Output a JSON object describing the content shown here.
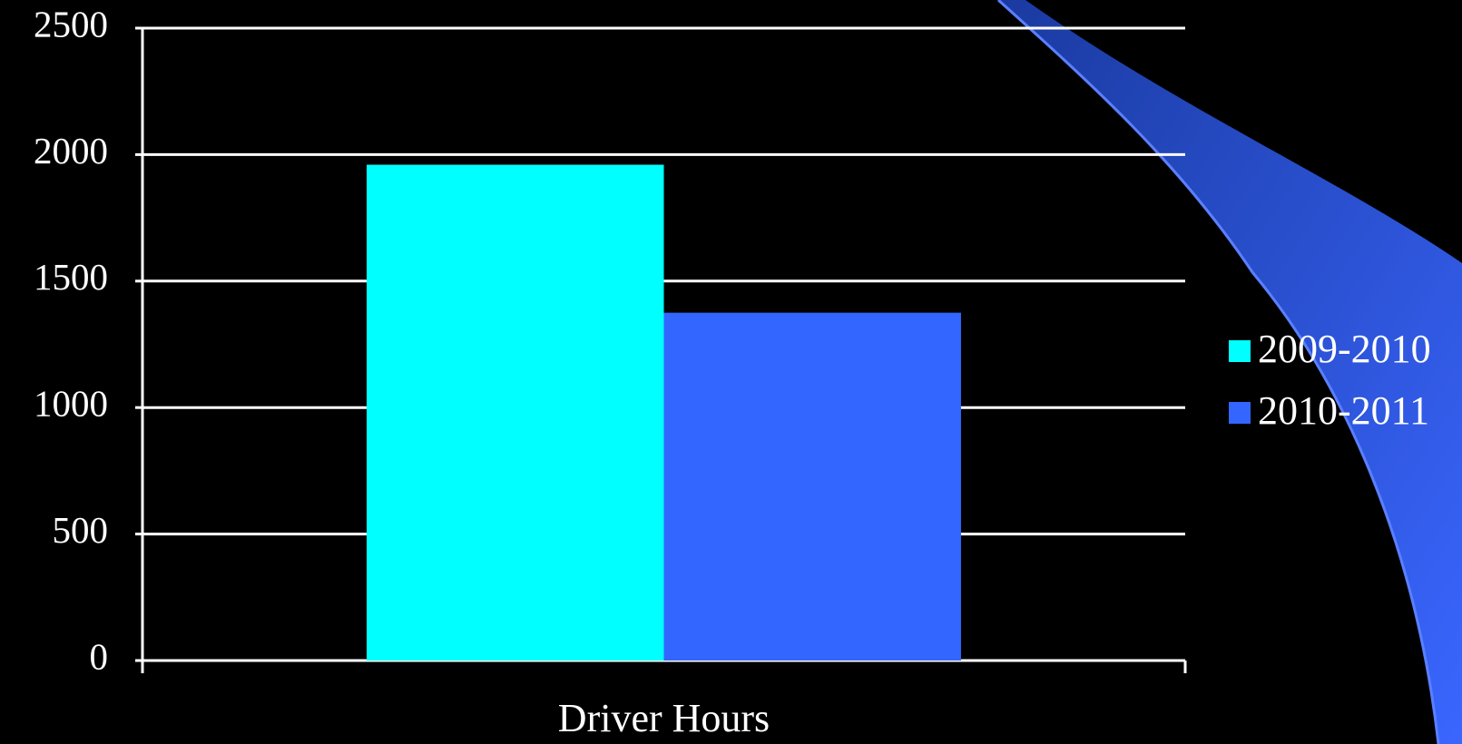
{
  "chart_data": {
    "type": "bar",
    "categories": [
      "Driver Hours"
    ],
    "series": [
      {
        "name": "2009-2010",
        "color": "#00ffff",
        "values": [
          1960
        ]
      },
      {
        "name": "2010-2011",
        "color": "#3366ff",
        "values": [
          1375
        ]
      }
    ],
    "ylim": [
      0,
      2500
    ],
    "yticks": [
      0,
      500,
      1000,
      1500,
      2000,
      2500
    ],
    "grid": true,
    "legend": "right"
  }
}
